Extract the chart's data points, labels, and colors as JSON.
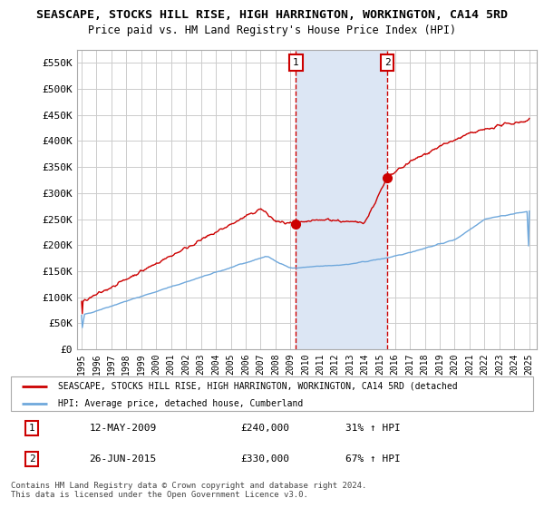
{
  "title": "SEASCAPE, STOCKS HILL RISE, HIGH HARRINGTON, WORKINGTON, CA14 5RD",
  "subtitle": "Price paid vs. HM Land Registry's House Price Index (HPI)",
  "ylim": [
    0,
    575000
  ],
  "yticks": [
    0,
    50000,
    100000,
    150000,
    200000,
    250000,
    300000,
    350000,
    400000,
    450000,
    500000,
    550000
  ],
  "ytick_labels": [
    "£0",
    "£50K",
    "£100K",
    "£150K",
    "£200K",
    "£250K",
    "£300K",
    "£350K",
    "£400K",
    "£450K",
    "£500K",
    "£550K"
  ],
  "xtick_years": [
    1995,
    1996,
    1997,
    1998,
    1999,
    2000,
    2001,
    2002,
    2003,
    2004,
    2005,
    2006,
    2007,
    2008,
    2009,
    2010,
    2011,
    2012,
    2013,
    2014,
    2015,
    2016,
    2017,
    2018,
    2019,
    2020,
    2021,
    2022,
    2023,
    2024,
    2025
  ],
  "sale1_year": 2009.37,
  "sale1_price": 240000,
  "sale2_year": 2015.49,
  "sale2_price": 330000,
  "hpi_color": "#6fa8dc",
  "price_color": "#cc0000",
  "vline_color": "#cc0000",
  "highlight_band_color": "#dce6f4",
  "legend_label_price": "SEASCAPE, STOCKS HILL RISE, HIGH HARRINGTON, WORKINGTON, CA14 5RD (detached",
  "legend_label_hpi": "HPI: Average price, detached house, Cumberland",
  "table_row1": [
    "1",
    "12-MAY-2009",
    "£240,000",
    "31% ↑ HPI"
  ],
  "table_row2": [
    "2",
    "26-JUN-2015",
    "£330,000",
    "67% ↑ HPI"
  ],
  "footer_text": "Contains HM Land Registry data © Crown copyright and database right 2024.\nThis data is licensed under the Open Government Licence v3.0.",
  "background_color": "#ffffff",
  "grid_color": "#cccccc",
  "box_color": "#cc0000"
}
